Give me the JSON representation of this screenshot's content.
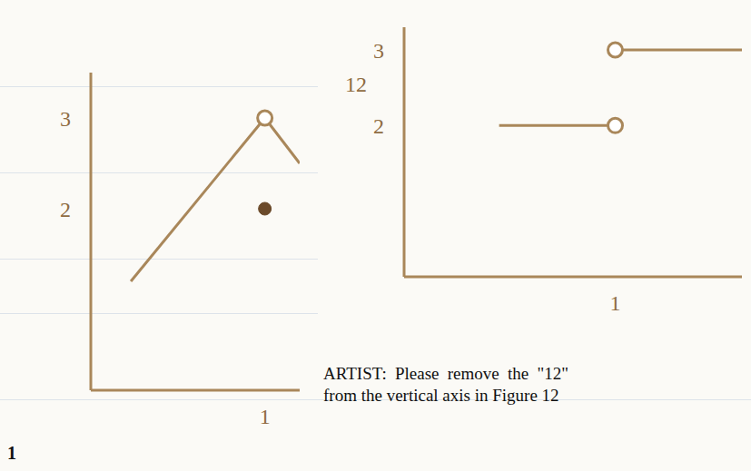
{
  "chart_data": [
    {
      "type": "line",
      "xlim": [
        0,
        1.2
      ],
      "xticks": [
        1
      ],
      "ylim": [
        0,
        3.5
      ],
      "yticks": [
        2,
        3
      ],
      "grid": false,
      "color": "#a9875a",
      "annotations": [
        "1"
      ],
      "series": [
        {
          "x": [
            0.23,
            1
          ],
          "values": [
            1.2,
            3
          ],
          "line_style": "solid",
          "marker": "none"
        },
        {
          "x": [
            1,
            1.2
          ],
          "values": [
            3,
            2.5
          ],
          "line_style": "solid",
          "marker": "none"
        },
        {
          "x": [
            1
          ],
          "values": [
            3
          ],
          "line_style": "none",
          "marker": "open_circle"
        },
        {
          "x": [
            1
          ],
          "values": [
            2
          ],
          "line_style": "none",
          "marker": "filled_circle"
        }
      ]
    },
    {
      "type": "line",
      "xlim": [
        0,
        1.6
      ],
      "xticks": [
        1
      ],
      "ylim": [
        0,
        3.3
      ],
      "yticks": [
        2,
        3
      ],
      "grid": false,
      "color": "#a9875a",
      "annotations": [
        "12",
        "ARTIST: Please remove the \"12\" from the vertical axis in Figure 12"
      ],
      "series": [
        {
          "x": [
            0.45,
            1
          ],
          "values": [
            2,
            2
          ],
          "line_style": "solid",
          "marker": "none"
        },
        {
          "x": [
            1
          ],
          "values": [
            2
          ],
          "line_style": "none",
          "marker": "open_circle"
        },
        {
          "x": [
            1,
            1.6
          ],
          "values": [
            3,
            3
          ],
          "line_style": "solid",
          "marker": "none"
        },
        {
          "x": [
            1
          ],
          "values": [
            3
          ],
          "line_style": "none",
          "marker": "open_circle"
        }
      ]
    }
  ]
}
